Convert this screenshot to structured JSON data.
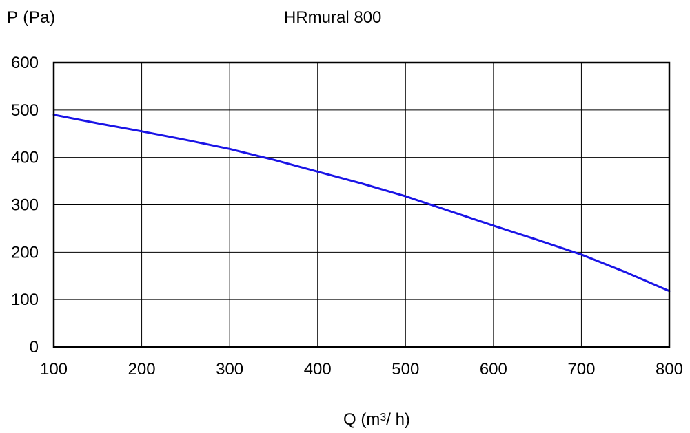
{
  "chart_data": {
    "type": "line",
    "title": "HRmural 800",
    "ylabel": "P  (Pa)",
    "xlabel": {
      "prefix": "Q  (m",
      "superscript": "3",
      "suffix": "/ h)"
    },
    "xlim": [
      100,
      800
    ],
    "ylim": [
      0,
      600
    ],
    "xticks": [
      100,
      200,
      300,
      400,
      500,
      600,
      700,
      800
    ],
    "yticks": [
      0,
      100,
      200,
      300,
      400,
      500,
      600
    ],
    "grid": true,
    "series": [
      {
        "color": "#1a14e6",
        "x": [
          100,
          150,
          200,
          250,
          300,
          350,
          400,
          450,
          500,
          550,
          600,
          650,
          700,
          750,
          800
        ],
        "y": [
          490,
          472,
          455,
          437,
          418,
          395,
          370,
          345,
          318,
          287,
          256,
          226,
          195,
          158,
          118
        ]
      }
    ]
  }
}
